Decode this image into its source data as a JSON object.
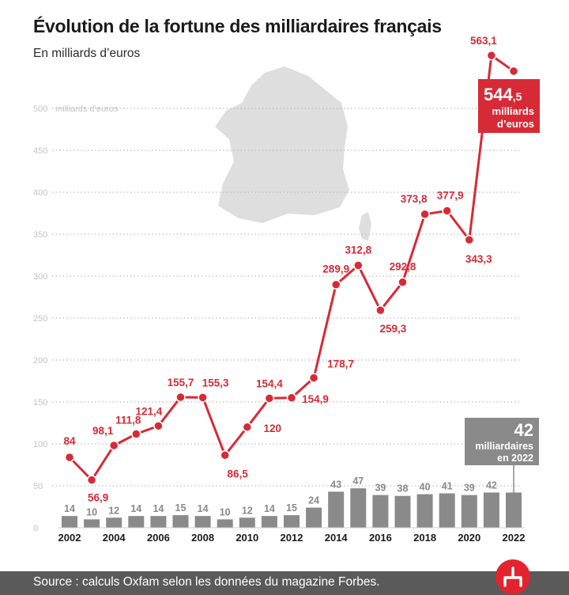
{
  "header": {
    "title": "Évolution de la fortune des milliardaires français",
    "subtitle": "En milliards d’euros"
  },
  "footer": {
    "source": "Source : calculs Oxfam selon les données du magazine Forbes."
  },
  "callouts": {
    "fortune_big": "544",
    "fortune_small": ",5",
    "fortune_line1": "milliards",
    "fortune_line2": "d’euros",
    "billionaires_big": "42",
    "billionaires_line1": "milliardaires",
    "billionaires_line2": "en 2022"
  },
  "colors": {
    "line": "#d62b36",
    "bars": "#8a8a8a",
    "map": "#dedede",
    "grid": "#bdbdbd",
    "callout_fortune": "#d62b36",
    "callout_billionaires": "#8a8a8a"
  },
  "chart_data": {
    "type": "line",
    "x": [
      2002,
      2003,
      2004,
      2005,
      2006,
      2007,
      2008,
      2009,
      2010,
      2011,
      2012,
      2013,
      2014,
      2015,
      2016,
      2017,
      2018,
      2019,
      2020,
      2021,
      2022
    ],
    "x_tick_labels": [
      "2002",
      "2004",
      "2006",
      "2008",
      "2010",
      "2012",
      "2014",
      "2016",
      "2018",
      "2020",
      "2022"
    ],
    "y_tick_labels": [
      "0",
      "50",
      "100",
      "150",
      "200",
      "250",
      "300",
      "350",
      "400",
      "450",
      "500"
    ],
    "y_tick_suffix": "milliards d’euros",
    "ylim": [
      0,
      560
    ],
    "grid": true,
    "series": [
      {
        "kind": "line",
        "values": [
          84,
          56.9,
          98.1,
          111.8,
          121.4,
          155.7,
          155.3,
          86.5,
          120,
          154.4,
          154.9,
          178.7,
          289.9,
          312.8,
          259.3,
          292.8,
          373.8,
          377.9,
          343.3,
          563.1,
          544.5
        ],
        "labels": [
          "84",
          "56,9",
          "98,1",
          "111,8",
          "121,4",
          "155,7",
          "155,3",
          "86,5",
          "120",
          "154,4",
          "154,9",
          "178,7",
          "289,9",
          "312,8",
          "259,3",
          "292,8",
          "373,8",
          "377,9",
          "343,3",
          "563,1",
          ""
        ]
      },
      {
        "kind": "bar",
        "values": [
          14,
          10,
          12,
          14,
          14,
          15,
          14,
          10,
          12,
          14,
          15,
          24,
          43,
          47,
          39,
          38,
          40,
          41,
          39,
          42,
          42
        ],
        "labels": [
          "14",
          "10",
          "12",
          "14",
          "14",
          "15",
          "14",
          "10",
          "12",
          "14",
          "15",
          "24",
          "43",
          "47",
          "39",
          "38",
          "40",
          "41",
          "39",
          "42",
          ""
        ]
      }
    ]
  }
}
